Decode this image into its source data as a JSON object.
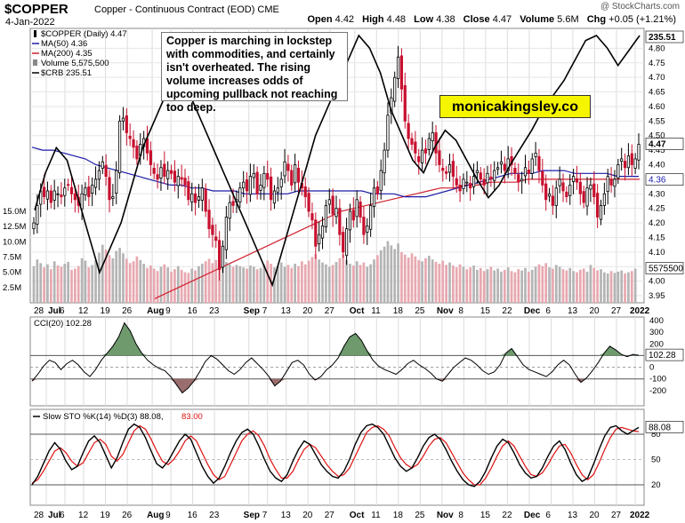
{
  "header": {
    "ticker": "$COPPER",
    "description": "Copper - Continuous Contract (EOD)",
    "exchange": "CME",
    "date": "4-Jan-2022",
    "brand": "@ StockCharts.com",
    "open_label": "Open",
    "open": "4.42",
    "high_label": "High",
    "high": "4.48",
    "low_label": "Low",
    "low": "4.38",
    "close_label": "Close",
    "close": "4.47",
    "volume_label": "Volume",
    "volume": "5.6M",
    "chg_label": "Chg",
    "chg": "+0.05 (+1.21%)"
  },
  "annotation": "Copper is marching in lockstep with commodities, and certainly isn't overheated. The rising volume increases odds of upcoming pullback not reaching too deep.",
  "watermark": "monicakingsley.co",
  "colors": {
    "up": "#000000",
    "down": "#c8102e",
    "ma50": "#1a1aa8",
    "ma200": "#d0202e",
    "crb": "#000000",
    "vol_up": "#b4b4b4",
    "vol_down": "#e8a8b0",
    "cci_fill": "#6e9a6e",
    "cci_fill_neg": "#9a6e6e",
    "sto_d": "#e01010"
  },
  "chart_data": [
    {
      "type": "candlestick",
      "legend": [
        {
          "text": "$COPPER (Daily) 4.47",
          "swatch": "candle"
        },
        {
          "text": "MA(50) 4.36",
          "swatch": "ma50"
        },
        {
          "text": "MA(200) 4.35",
          "swatch": "ma200"
        },
        {
          "text": "Volume 5,575,500",
          "swatch": "vol"
        },
        {
          "text": "$CRB 235.51",
          "swatch": "crb"
        }
      ],
      "price_ylim": [
        3.95,
        4.85
      ],
      "price_ticks": [
        "3.95",
        "4.00",
        "4.05",
        "4.10",
        "4.15",
        "4.20",
        "4.25",
        "4.30",
        "4.35",
        "4.40",
        "4.45",
        "4.50",
        "4.55",
        "4.60",
        "4.65",
        "4.70",
        "4.75",
        "4.80"
      ],
      "volume_ticks": [
        "2.5M",
        "5.0M",
        "7.5M",
        "10.0M",
        "12.5M",
        "15.0M"
      ],
      "x_labels": [
        "28 Jul",
        "6",
        "12",
        "19",
        "26",
        "Aug",
        "9",
        "16",
        "23",
        "Sep",
        "7",
        "13",
        "20",
        "27",
        "Oct",
        "11",
        "18",
        "25",
        "Nov",
        "8",
        "15",
        "22",
        "Dec",
        "6",
        "13",
        "20",
        "27",
        "2022"
      ],
      "x_label_days": [
        0,
        6,
        12,
        19,
        26,
        34,
        40,
        47,
        54,
        65,
        71,
        77,
        84,
        91,
        99,
        106,
        113,
        120,
        127,
        134,
        141,
        148,
        155,
        162,
        169,
        176,
        183,
        189
      ],
      "bold_labels": [
        "Jul",
        "Aug",
        "Sep",
        "Oct",
        "Nov",
        "Dec",
        "2022"
      ],
      "last_price_label": "4.47",
      "ma50_label": "4.36",
      "crb_label": "235.51",
      "volume_label": "5575500",
      "crb_range_note": "CRB overlay plotted on own scale",
      "closes": [
        4.2,
        4.26,
        4.31,
        4.29,
        4.31,
        4.27,
        4.31,
        4.3,
        4.29,
        4.32,
        4.33,
        4.3,
        4.28,
        4.26,
        4.3,
        4.32,
        4.29,
        4.33,
        4.35,
        4.38,
        4.41,
        4.36,
        4.28,
        4.29,
        4.38,
        4.55,
        4.56,
        4.51,
        4.49,
        4.46,
        4.42,
        4.47,
        4.49,
        4.44,
        4.4,
        4.37,
        4.35,
        4.39,
        4.36,
        4.38,
        4.37,
        4.34,
        4.36,
        4.35,
        4.33,
        4.28,
        4.3,
        4.27,
        4.29,
        4.32,
        4.24,
        4.18,
        4.16,
        4.14,
        4.04,
        4.12,
        4.22,
        4.27,
        4.26,
        4.28,
        4.32,
        4.34,
        4.31,
        4.36,
        4.37,
        4.3,
        4.33,
        4.37,
        4.35,
        4.28,
        4.31,
        4.32,
        4.35,
        4.41,
        4.38,
        4.33,
        4.4,
        4.34,
        4.32,
        4.29,
        4.24,
        4.21,
        4.12,
        4.16,
        4.19,
        4.26,
        4.28,
        4.23,
        4.25,
        4.16,
        4.1,
        4.18,
        4.24,
        4.21,
        4.28,
        4.22,
        4.16,
        4.19,
        4.26,
        4.32,
        4.3,
        4.38,
        4.45,
        4.57,
        4.63,
        4.7,
        4.77,
        4.66,
        4.55,
        4.49,
        4.47,
        4.44,
        4.41,
        4.45,
        4.44,
        4.49,
        4.51,
        4.44,
        4.4,
        4.38,
        4.37,
        4.4,
        4.36,
        4.33,
        4.31,
        4.35,
        4.34,
        4.32,
        4.36,
        4.38,
        4.35,
        4.33,
        4.37,
        4.35,
        4.38,
        4.39,
        4.41,
        4.38,
        4.42,
        4.4,
        4.37,
        4.34,
        4.35,
        4.39,
        4.37,
        4.42,
        4.44,
        4.38,
        4.33,
        4.28,
        4.3,
        4.26,
        4.32,
        4.35,
        4.31,
        4.29,
        4.33,
        4.36,
        4.34,
        4.3,
        4.27,
        4.32,
        4.33,
        4.29,
        4.22,
        4.26,
        4.3,
        4.36,
        4.33,
        4.35,
        4.4,
        4.42,
        4.39,
        4.43,
        4.4,
        4.42,
        4.47
      ],
      "volumes_m": [
        6.0,
        7.1,
        6.5,
        5.8,
        6.3,
        5.5,
        6.8,
        6.1,
        5.9,
        6.4,
        6.7,
        5.4,
        5.6,
        6.0,
        7.3,
        6.9,
        5.8,
        6.2,
        7.0,
        8.2,
        9.5,
        8.7,
        7.8,
        7.3,
        8.5,
        9.0,
        8.1,
        7.2,
        6.5,
        6.8,
        7.6,
        7.0,
        6.4,
        5.7,
        6.1,
        5.6,
        5.2,
        5.9,
        6.3,
        5.8,
        5.1,
        5.5,
        6.0,
        5.4,
        5.0,
        4.9,
        5.6,
        5.3,
        6.0,
        6.4,
        6.8,
        7.2,
        6.5,
        7.0,
        8.1,
        7.4,
        6.7,
        6.3,
        5.9,
        6.2,
        6.0,
        5.8,
        5.6,
        6.1,
        5.9,
        5.5,
        5.7,
        6.3,
        6.9,
        6.4,
        5.8,
        6.0,
        6.6,
        5.9,
        6.2,
        5.7,
        6.4,
        6.0,
        6.8,
        6.3,
        6.9,
        7.5,
        8.0,
        7.1,
        6.6,
        6.3,
        5.9,
        6.2,
        6.7,
        7.3,
        7.9,
        7.0,
        6.4,
        6.1,
        6.8,
        6.2,
        6.6,
        5.9,
        6.3,
        7.1,
        7.8,
        8.6,
        9.2,
        10.1,
        9.4,
        8.8,
        9.7,
        8.3,
        7.9,
        7.4,
        8.1,
        7.6,
        7.0,
        6.8,
        7.3,
        7.7,
        7.1,
        6.7,
        6.4,
        6.9,
        6.2,
        6.6,
        6.1,
        5.8,
        6.3,
        5.9,
        5.5,
        5.8,
        6.1,
        5.4,
        5.7,
        5.2,
        5.5,
        5.9,
        5.3,
        5.6,
        5.1,
        5.4,
        5.8,
        5.2,
        5.0,
        5.5,
        5.3,
        5.7,
        5.1,
        5.4,
        5.9,
        6.3,
        6.0,
        6.5,
        5.8,
        5.6,
        6.2,
        5.9,
        5.5,
        5.3,
        5.7,
        5.2,
        5.0,
        5.4,
        5.6,
        5.1,
        6.2,
        5.7,
        5.3,
        5.5,
        5.0,
        4.8,
        5.2,
        4.9,
        5.1,
        5.3,
        4.8,
        5.0,
        5.2,
        5.6
      ],
      "ma50": [
        4.46,
        4.45,
        4.45,
        4.44,
        4.43,
        4.42,
        4.4,
        4.39,
        4.38,
        4.37,
        4.36,
        4.35,
        4.34,
        4.33,
        4.33,
        4.32,
        4.32,
        4.31,
        4.31,
        4.31,
        4.3,
        4.3,
        4.3,
        4.3,
        4.3,
        4.31,
        4.31,
        4.31,
        4.31,
        4.31,
        4.31,
        4.31,
        4.3,
        4.3,
        4.3,
        4.29,
        4.29,
        4.29,
        4.3,
        4.31,
        4.32,
        4.33,
        4.34,
        4.35,
        4.36,
        4.37,
        4.37,
        4.37,
        4.38,
        4.38,
        4.38,
        4.37,
        4.37,
        4.37,
        4.37,
        4.36,
        4.36,
        4.36
      ],
      "ma200": [
        3.94,
        3.96,
        3.98,
        4.0,
        4.02,
        4.04,
        4.06,
        4.08,
        4.1,
        4.12,
        4.14,
        4.16,
        4.18,
        4.2,
        4.22,
        4.24,
        4.25,
        4.26,
        4.27,
        4.28,
        4.29,
        4.3,
        4.31,
        4.32,
        4.32,
        4.33,
        4.33,
        4.34,
        4.34,
        4.34,
        4.35,
        4.35,
        4.35,
        4.35,
        4.35,
        4.35,
        4.35,
        4.35,
        4.35,
        4.35
      ],
      "crb_norm": [
        0.3,
        0.45,
        0.55,
        0.5,
        0.35,
        0.2,
        0.05,
        0.15,
        0.25,
        0.4,
        0.55,
        0.65,
        0.75,
        0.82,
        0.8,
        0.7,
        0.6,
        0.5,
        0.4,
        0.3,
        0.2,
        0.1,
        0.0,
        0.15,
        0.3,
        0.45,
        0.6,
        0.7,
        0.8,
        0.9,
        1.0,
        0.95,
        0.85,
        0.7,
        0.6,
        0.5,
        0.45,
        0.55,
        0.62,
        0.58,
        0.5,
        0.42,
        0.35,
        0.4,
        0.48,
        0.55,
        0.62,
        0.7,
        0.76,
        0.82,
        0.9,
        0.98,
        1.0,
        0.95,
        0.88,
        0.94,
        1.0
      ]
    },
    {
      "type": "line",
      "name": "CCI(20) 102.28",
      "ylim": [
        -300,
        400
      ],
      "ticks": [
        "-200",
        "-100",
        "0",
        "100",
        "200",
        "300",
        "400"
      ],
      "levels": [
        100,
        -100
      ],
      "last_label": "102.28",
      "values": [
        -120,
        -60,
        10,
        60,
        40,
        -20,
        30,
        60,
        20,
        -40,
        -80,
        -20,
        60,
        120,
        180,
        260,
        380,
        310,
        200,
        120,
        60,
        20,
        -10,
        -30,
        -80,
        -150,
        -220,
        -180,
        -120,
        -40,
        50,
        100,
        70,
        20,
        -30,
        -60,
        -20,
        40,
        80,
        30,
        -20,
        -80,
        -160,
        -120,
        -40,
        40,
        60,
        20,
        -60,
        -110,
        -80,
        -20,
        20,
        80,
        180,
        260,
        290,
        230,
        140,
        60,
        10,
        -20,
        -40,
        -60,
        -20,
        30,
        60,
        20,
        -10,
        -50,
        -100,
        -120,
        -60,
        0,
        40,
        80,
        60,
        20,
        -30,
        -60,
        -40,
        20,
        120,
        160,
        90,
        20,
        -20,
        -40,
        -60,
        -80,
        -40,
        20,
        60,
        20,
        -60,
        -130,
        -90,
        -30,
        40,
        120,
        180,
        150,
        110,
        90,
        110,
        102.28
      ]
    },
    {
      "type": "line",
      "name": "Slow STO %K(14) %D(3) 88.08, 83.00",
      "legend_k": "Slow STO %K(14) %D(3) 88.08,",
      "legend_d": "83.00",
      "ylim": [
        0,
        100
      ],
      "ticks": [
        "20",
        "50",
        "80"
      ],
      "levels": [
        80,
        20
      ],
      "last_label": "88.08",
      "k_values": [
        20,
        30,
        45,
        60,
        70,
        62,
        48,
        38,
        42,
        58,
        72,
        78,
        70,
        55,
        40,
        52,
        70,
        86,
        92,
        88,
        76,
        60,
        45,
        40,
        48,
        60,
        72,
        80,
        74,
        58,
        42,
        30,
        22,
        28,
        42,
        58,
        72,
        82,
        86,
        80,
        66,
        50,
        36,
        28,
        24,
        32,
        48,
        62,
        72,
        68,
        56,
        44,
        36,
        30,
        28,
        36,
        50,
        68,
        82,
        90,
        92,
        88,
        80,
        66,
        52,
        42,
        36,
        40,
        52,
        66,
        76,
        80,
        74,
        62,
        48,
        36,
        26,
        20,
        18,
        24,
        36,
        52,
        66,
        74,
        70,
        58,
        44,
        34,
        28,
        30,
        40,
        54,
        66,
        72,
        62,
        46,
        32,
        24,
        28,
        44,
        62,
        78,
        88,
        90,
        84,
        80,
        84,
        88
      ],
      "d_values": [
        22,
        26,
        36,
        48,
        60,
        64,
        58,
        48,
        42,
        46,
        58,
        70,
        74,
        68,
        54,
        48,
        56,
        70,
        84,
        90,
        86,
        74,
        60,
        48,
        44,
        50,
        60,
        72,
        78,
        72,
        58,
        44,
        32,
        26,
        30,
        44,
        58,
        72,
        80,
        84,
        78,
        66,
        50,
        38,
        28,
        28,
        36,
        50,
        62,
        68,
        64,
        54,
        44,
        36,
        30,
        32,
        40,
        54,
        68,
        82,
        88,
        90,
        86,
        78,
        64,
        52,
        44,
        40,
        44,
        54,
        66,
        74,
        76,
        70,
        58,
        46,
        34,
        26,
        20,
        20,
        28,
        40,
        54,
        66,
        72,
        66,
        54,
        42,
        32,
        30,
        34,
        44,
        56,
        66,
        68,
        58,
        44,
        32,
        26,
        32,
        46,
        62,
        76,
        86,
        88,
        86,
        84,
        83
      ]
    }
  ]
}
